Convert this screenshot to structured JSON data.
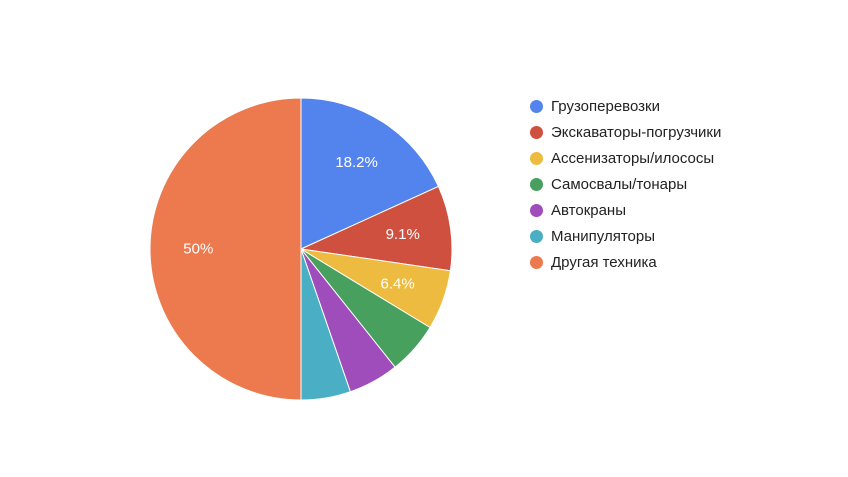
{
  "chart_data": {
    "type": "pie",
    "title": "",
    "slices": [
      {
        "name": "Грузоперевозки",
        "value": 18.2,
        "label": "18.2%",
        "color": "#5383ec"
      },
      {
        "name": "Экскаваторы-погрузчики",
        "value": 9.1,
        "label": "9.1%",
        "color": "#d0503f"
      },
      {
        "name": "Ассенизаторы/илососы",
        "value": 6.4,
        "label": "6.4%",
        "color": "#edbb40"
      },
      {
        "name": "Самосвалы/тонары",
        "value": 5.6,
        "label": "",
        "color": "#47a05e"
      },
      {
        "name": "Автокраны",
        "value": 5.4,
        "label": "",
        "color": "#9e4dbb"
      },
      {
        "name": "Манипуляторы",
        "value": 5.3,
        "label": "",
        "color": "#4aaec4"
      },
      {
        "name": "Другая техника",
        "value": 50,
        "label": "50%",
        "color": "#ec7a4e"
      }
    ],
    "legend_position": "right"
  }
}
